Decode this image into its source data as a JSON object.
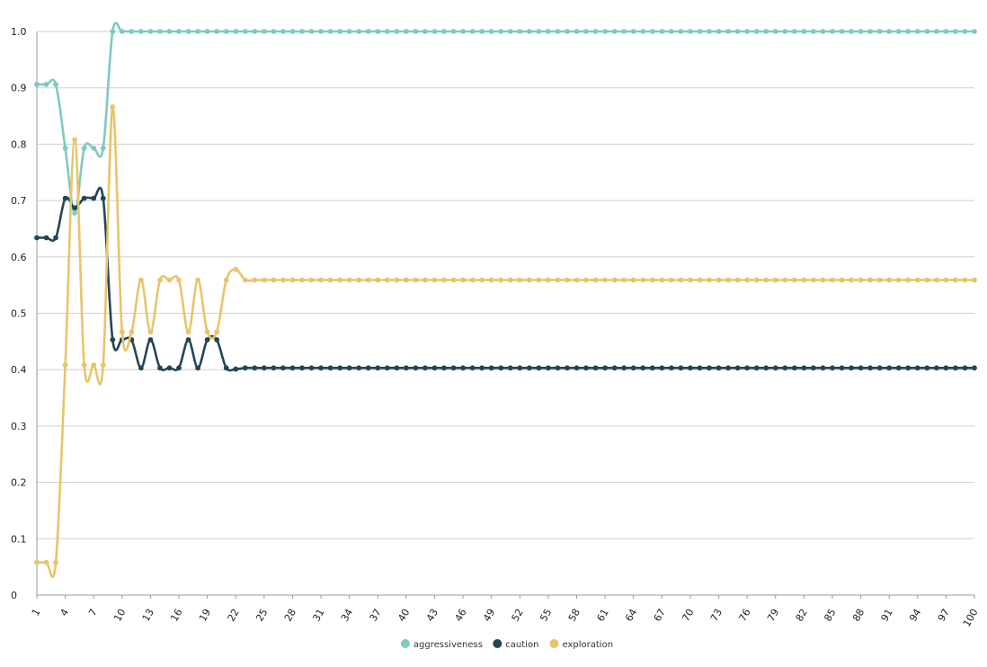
{
  "colors": {
    "aggressiveness": "#7ecac3",
    "caution": "#234656",
    "exploration": "#e8c46a",
    "grid": "#d0d0d0",
    "axis": "#999999"
  },
  "chart_data": {
    "type": "line",
    "title": "",
    "xlabel": "",
    "ylabel": "",
    "ylim": [
      0,
      1
    ],
    "yticks": [
      "0",
      "0.1",
      "0.2",
      "0.3",
      "0.4",
      "0.5",
      "0.6",
      "0.7",
      "0.8",
      "0.9",
      "1.0"
    ],
    "xlim": [
      1,
      100
    ],
    "x_tick_labels": [
      "1",
      "4",
      "7",
      "10",
      "13",
      "16",
      "19",
      "22",
      "25",
      "28",
      "31",
      "34",
      "37",
      "40",
      "43",
      "46",
      "49",
      "52",
      "55",
      "58",
      "61",
      "64",
      "67",
      "70",
      "73",
      "76",
      "79",
      "82",
      "85",
      "88",
      "91",
      "94",
      "97",
      "100"
    ],
    "grid": "horizontal",
    "legend_position": "bottom",
    "series": [
      {
        "name": "aggressiveness",
        "head": [
          0.906,
          0.906,
          0.906,
          0.793,
          0.678,
          0.793,
          0.793,
          0.793,
          1.0
        ],
        "tail_value": 1.0
      },
      {
        "name": "caution",
        "head": [
          0.634,
          0.634,
          0.634,
          0.704,
          0.687,
          0.704,
          0.704,
          0.704,
          0.453,
          0.453,
          0.453,
          0.403,
          0.453,
          0.403,
          0.403,
          0.403,
          0.453,
          0.403,
          0.453,
          0.453,
          0.403,
          0.401
        ],
        "tail_value": 0.403
      },
      {
        "name": "exploration",
        "head": [
          0.058,
          0.058,
          0.058,
          0.408,
          0.808,
          0.408,
          0.408,
          0.408,
          0.866,
          0.467,
          0.467,
          0.559,
          0.467,
          0.559,
          0.559,
          0.559,
          0.467,
          0.559,
          0.467,
          0.467,
          0.559,
          0.578
        ],
        "tail_value": 0.559
      }
    ]
  }
}
